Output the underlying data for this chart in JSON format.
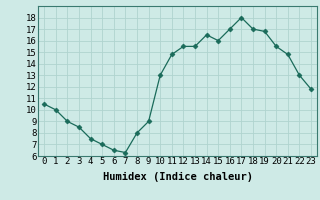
{
  "x": [
    0,
    1,
    2,
    3,
    4,
    5,
    6,
    7,
    8,
    9,
    10,
    11,
    12,
    13,
    14,
    15,
    16,
    17,
    18,
    19,
    20,
    21,
    22,
    23
  ],
  "y": [
    10.5,
    10.0,
    9.0,
    8.5,
    7.5,
    7.0,
    6.5,
    6.3,
    8.0,
    9.0,
    13.0,
    14.8,
    15.5,
    15.5,
    16.5,
    16.0,
    17.0,
    18.0,
    17.0,
    16.8,
    15.5,
    14.8,
    13.0,
    11.8
  ],
  "line_color": "#1a6b5a",
  "marker": "D",
  "marker_size": 2.5,
  "bg_color": "#ceeae6",
  "grid_color": "#b0d4cf",
  "xlabel": "Humidex (Indice chaleur)",
  "xlabel_fontsize": 7.5,
  "tick_fontsize": 6.5,
  "ylim": [
    6,
    19
  ],
  "xlim": [
    -0.5,
    23.5
  ],
  "yticks": [
    6,
    7,
    8,
    9,
    10,
    11,
    12,
    13,
    14,
    15,
    16,
    17,
    18
  ],
  "xticks": [
    0,
    1,
    2,
    3,
    4,
    5,
    6,
    7,
    8,
    9,
    10,
    11,
    12,
    13,
    14,
    15,
    16,
    17,
    18,
    19,
    20,
    21,
    22,
    23
  ]
}
